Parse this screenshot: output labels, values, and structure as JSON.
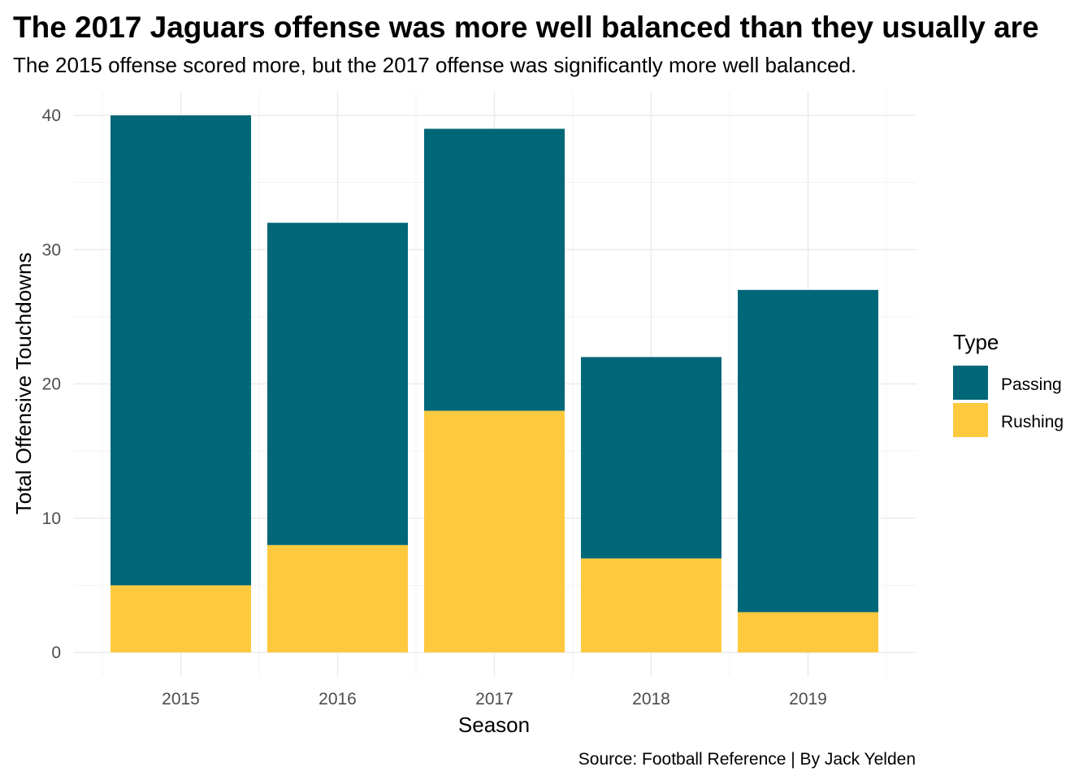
{
  "chart_data": {
    "type": "bar",
    "stacked": true,
    "title": "The 2017 Jaguars offense was more well balanced than they usually are",
    "subtitle": "The 2015 offense scored more, but the 2017 offense was significantly more well balanced.",
    "xlabel": "Season",
    "ylabel": "Total Offensive Touchdowns",
    "caption": "Source: Football Reference | By Jack Yelden",
    "categories": [
      "2015",
      "2016",
      "2017",
      "2018",
      "2019"
    ],
    "series": [
      {
        "name": "Rushing",
        "values": [
          5,
          8,
          18,
          7,
          3
        ],
        "color": "#FDC93E"
      },
      {
        "name": "Passing",
        "values": [
          35,
          24,
          21,
          15,
          24
        ],
        "color": "#006778"
      }
    ],
    "ylim": [
      0,
      40
    ],
    "yticks": [
      "0",
      "10",
      "20",
      "30",
      "40"
    ],
    "legend": {
      "title": "Type",
      "position": "right",
      "entries": [
        "Passing",
        "Rushing"
      ]
    },
    "grid": true
  }
}
